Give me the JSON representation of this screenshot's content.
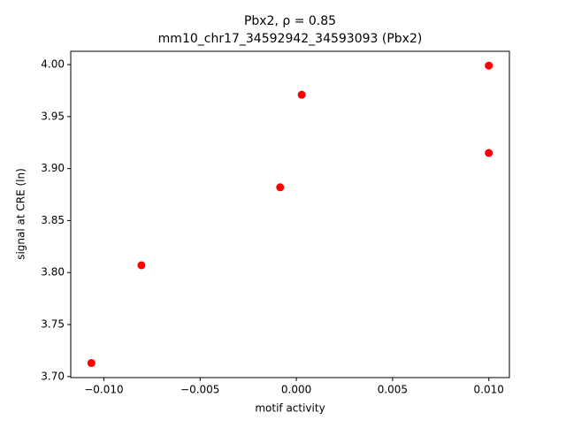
{
  "chart_data": {
    "type": "scatter",
    "title": "Pbx2, ρ = 0.85",
    "subtitle": "mm10_chr17_34592942_34593093 (Pbx2)",
    "x_label": "motif activity",
    "y_label": "signal at CRE (ln)",
    "color": "#ff0000",
    "x": [
      -0.01065,
      -0.00805,
      -0.00084,
      0.00028,
      0.01,
      0.01
    ],
    "values": [
      3.713,
      3.807,
      3.882,
      3.971,
      3.999,
      3.915
    ],
    "xlim": [
      -0.01172,
      0.01107
    ],
    "ylim": [
      3.699,
      4.0128
    ],
    "xticks": [
      {
        "value": -0.01,
        "label": "−0.010"
      },
      {
        "value": -0.005,
        "label": "−0.005"
      },
      {
        "value": 0,
        "label": "0.000"
      },
      {
        "value": 0.005,
        "label": "0.005"
      },
      {
        "value": 0.01,
        "label": "0.010"
      }
    ],
    "yticks": [
      {
        "value": 3.7,
        "label": "3.70"
      },
      {
        "value": 3.75,
        "label": "3.75"
      },
      {
        "value": 3.8,
        "label": "3.80"
      },
      {
        "value": 3.85,
        "label": "3.85"
      },
      {
        "value": 3.9,
        "label": "3.90"
      },
      {
        "value": 3.95,
        "label": "3.95"
      },
      {
        "value": 4.0,
        "label": "4.00"
      }
    ]
  }
}
